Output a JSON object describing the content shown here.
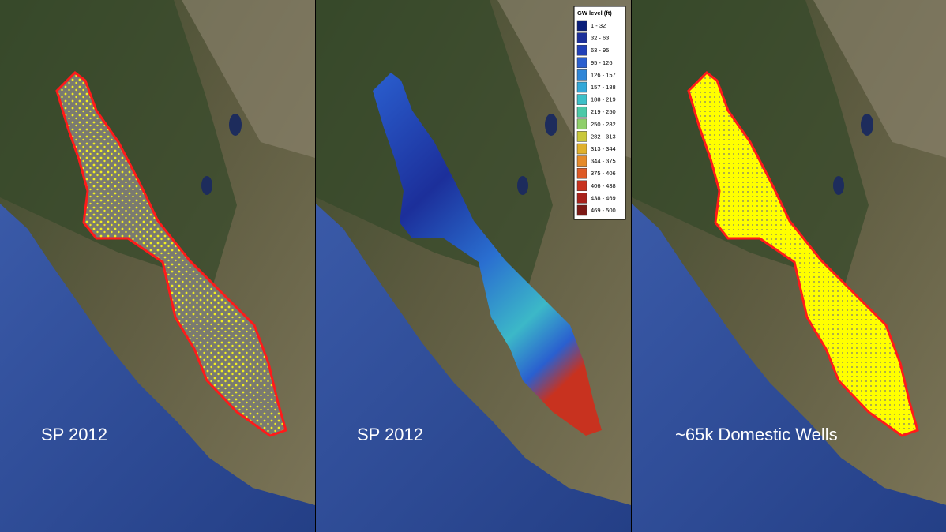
{
  "panels": [
    {
      "label": "SP 2012"
    },
    {
      "label": "SP 2012",
      "legend": {
        "title": "GW level (ft)",
        "items": [
          {
            "label": "1 - 32",
            "color": "#0a1e7a"
          },
          {
            "label": "32 - 63",
            "color": "#1c2f9a"
          },
          {
            "label": "63 - 95",
            "color": "#2140b8"
          },
          {
            "label": "95 - 126",
            "color": "#2a5fcf"
          },
          {
            "label": "126 - 157",
            "color": "#2f86d8"
          },
          {
            "label": "157 - 188",
            "color": "#33a8d8"
          },
          {
            "label": "188 - 219",
            "color": "#3cc0c8"
          },
          {
            "label": "219 - 250",
            "color": "#4cc9a8"
          },
          {
            "label": "250 - 282",
            "color": "#8fcf6a"
          },
          {
            "label": "282 - 313",
            "color": "#c9c83a"
          },
          {
            "label": "313 - 344",
            "color": "#e0b12c"
          },
          {
            "label": "344 - 375",
            "color": "#e58a2a"
          },
          {
            "label": "375 - 406",
            "color": "#de5a26"
          },
          {
            "label": "406 - 438",
            "color": "#c8321f"
          },
          {
            "label": "438 - 469",
            "color": "#a9221c"
          },
          {
            "label": "469 - 500",
            "color": "#7d1a16"
          }
        ]
      }
    },
    {
      "label": "~65k Domestic Wells"
    }
  ]
}
